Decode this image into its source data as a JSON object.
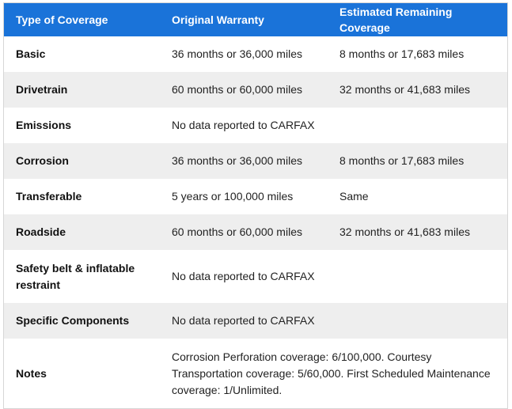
{
  "headers": {
    "coverage": "Type of Coverage",
    "original": "Original Warranty",
    "remaining": "Estimated Remaining Coverage"
  },
  "rows": [
    {
      "type": "Basic",
      "original": "36 months or 36,000 miles",
      "remaining": "8 months or 17,683 miles"
    },
    {
      "type": "Drivetrain",
      "original": "60 months or 60,000 miles",
      "remaining": "32 months or 41,683 miles"
    },
    {
      "type": "Emissions",
      "original": "No data reported to CARFAX",
      "remaining": ""
    },
    {
      "type": "Corrosion",
      "original": "36 months or 36,000 miles",
      "remaining": "8 months or 17,683 miles"
    },
    {
      "type": "Transferable",
      "original": "5 years or 100,000 miles",
      "remaining": "Same"
    },
    {
      "type": "Roadside",
      "original": "60 months or 60,000 miles",
      "remaining": "32 months or 41,683 miles"
    },
    {
      "type": "Safety belt & inflatable restraint",
      "original": "No data reported to CARFAX",
      "remaining": ""
    },
    {
      "type": "Specific Components",
      "original": "No data reported to CARFAX",
      "remaining": ""
    },
    {
      "type": "Notes",
      "original": "Corrosion Perforation coverage: 6/100,000. Courtesy Transportation coverage: 5/60,000. First Scheduled Maintenance coverage: 1/Unlimited.",
      "remaining": ""
    }
  ],
  "colors": {
    "header_bg": "#1a73d9",
    "header_text": "#ffffff",
    "stripe": "#eeeeee"
  }
}
